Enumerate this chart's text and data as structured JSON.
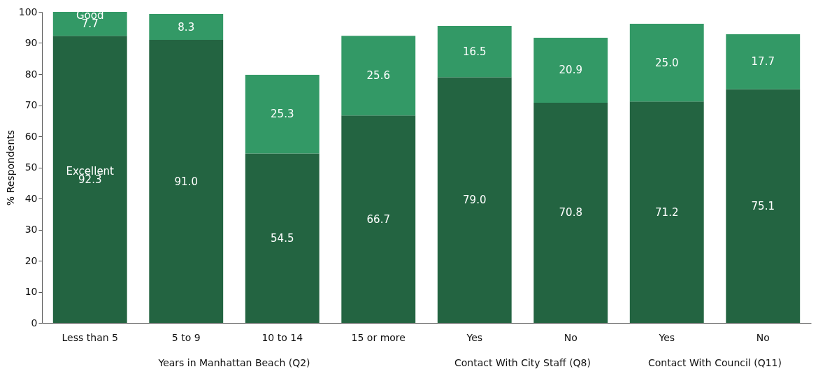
{
  "chart_data": {
    "type": "bar",
    "stacked": true,
    "ylabel": "% Respondents",
    "ylim": [
      0,
      100
    ],
    "yticks": [
      0,
      10,
      20,
      30,
      40,
      50,
      60,
      70,
      80,
      90,
      100
    ],
    "grid": false,
    "legend": false,
    "categories": [
      "Less than 5",
      "5 to 9",
      "10 to 14",
      "15 or more",
      "Yes",
      "No",
      "Yes",
      "No"
    ],
    "series": [
      {
        "name": "Excellent",
        "color": "#236441",
        "values": [
          92.3,
          91.0,
          54.5,
          66.7,
          79.0,
          70.8,
          71.2,
          75.1
        ],
        "value_labels": [
          "92.3",
          "91.0",
          "54.5",
          "66.7",
          "79.0",
          "70.8",
          "71.2",
          "75.1"
        ]
      },
      {
        "name": "Good",
        "color": "#339966",
        "values": [
          7.7,
          8.3,
          25.3,
          25.6,
          16.5,
          20.9,
          25.0,
          17.7
        ],
        "value_labels": [
          "7.7",
          "8.3",
          "25.3",
          "25.6",
          "16.5",
          "20.9",
          "25.0",
          "17.7"
        ]
      }
    ],
    "annotations": [
      "Years in Manhattan Beach (Q2)",
      "Contact With City Staff (Q8)",
      "Contact With Council (Q11)"
    ]
  }
}
